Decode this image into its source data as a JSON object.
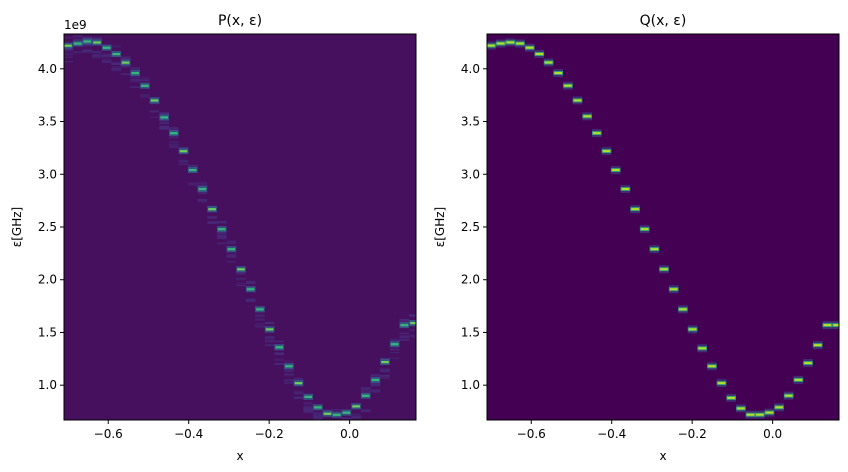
{
  "colors": {
    "p_background": "#46105f",
    "q_background": "#440154",
    "p_faint": "#482878",
    "p_mid": "#31688e",
    "p_strong": "#35b779",
    "q_glow": "#3b528b",
    "q_core": "#b5de2b",
    "p_core": "#6ece58"
  },
  "chart_data": [
    {
      "type": "heatmap",
      "title": "P(x, ε)",
      "xlabel": "x",
      "ylabel": "ε[GHz]",
      "xlim": [
        -0.71,
        0.165
      ],
      "ylim": [
        0.67,
        4.33
      ],
      "y_offset_label": "1e9",
      "xticks": [
        -0.6,
        -0.4,
        -0.2,
        0.0
      ],
      "xtick_labels": [
        "−0.6",
        "−0.4",
        "−0.2",
        "0.0"
      ],
      "yticks": [
        1.0,
        1.5,
        2.0,
        2.5,
        3.0,
        3.5,
        4.0
      ],
      "ytick_labels": [
        "1.0",
        "1.5",
        "2.0",
        "2.5",
        "3.0",
        "3.5",
        "4.0"
      ],
      "grid": false,
      "column_width": 0.0238,
      "spread": 0.12,
      "x": [
        -0.7,
        -0.676,
        -0.652,
        -0.628,
        -0.604,
        -0.58,
        -0.557,
        -0.533,
        -0.509,
        -0.485,
        -0.461,
        -0.437,
        -0.413,
        -0.39,
        -0.366,
        -0.342,
        -0.318,
        -0.294,
        -0.27,
        -0.246,
        -0.223,
        -0.199,
        -0.175,
        -0.151,
        -0.127,
        -0.103,
        -0.079,
        -0.055,
        -0.032,
        -0.008,
        0.016,
        0.04,
        0.064,
        0.088,
        0.112,
        0.136,
        0.16
      ],
      "peak": [
        4.22,
        4.24,
        4.26,
        4.25,
        4.2,
        4.14,
        4.06,
        3.96,
        3.84,
        3.7,
        3.54,
        3.39,
        3.22,
        3.04,
        2.86,
        2.67,
        2.48,
        2.29,
        2.1,
        1.91,
        1.72,
        1.53,
        1.36,
        1.18,
        1.02,
        0.89,
        0.79,
        0.73,
        0.72,
        0.74,
        0.8,
        0.9,
        1.05,
        1.22,
        1.39,
        1.57,
        1.59
      ]
    },
    {
      "type": "heatmap",
      "title": "Q(x, ε)",
      "xlabel": "x",
      "ylabel": "ε[GHz]",
      "xlim": [
        -0.71,
        0.165
      ],
      "ylim": [
        0.67,
        4.33
      ],
      "xticks": [
        -0.6,
        -0.4,
        -0.2,
        0.0
      ],
      "xtick_labels": [
        "−0.6",
        "−0.4",
        "−0.2",
        "0.0"
      ],
      "yticks": [
        1.0,
        1.5,
        2.0,
        2.5,
        3.0,
        3.5,
        4.0
      ],
      "ytick_labels": [
        "1.0",
        "1.5",
        "2.0",
        "2.5",
        "3.0",
        "3.5",
        "4.0"
      ],
      "grid": false,
      "column_width": 0.0238,
      "x": [
        -0.7,
        -0.676,
        -0.652,
        -0.628,
        -0.604,
        -0.58,
        -0.557,
        -0.533,
        -0.509,
        -0.485,
        -0.461,
        -0.437,
        -0.413,
        -0.39,
        -0.366,
        -0.342,
        -0.318,
        -0.294,
        -0.27,
        -0.246,
        -0.223,
        -0.199,
        -0.175,
        -0.151,
        -0.127,
        -0.103,
        -0.079,
        -0.055,
        -0.032,
        -0.008,
        0.016,
        0.04,
        0.064,
        0.088,
        0.112,
        0.136,
        0.16
      ],
      "peak": [
        4.22,
        4.24,
        4.25,
        4.24,
        4.2,
        4.14,
        4.06,
        3.96,
        3.84,
        3.7,
        3.55,
        3.39,
        3.22,
        3.04,
        2.86,
        2.67,
        2.48,
        2.29,
        2.1,
        1.91,
        1.72,
        1.53,
        1.35,
        1.18,
        1.02,
        0.88,
        0.78,
        0.72,
        0.72,
        0.74,
        0.79,
        0.9,
        1.05,
        1.21,
        1.38,
        1.57,
        1.57
      ]
    }
  ]
}
